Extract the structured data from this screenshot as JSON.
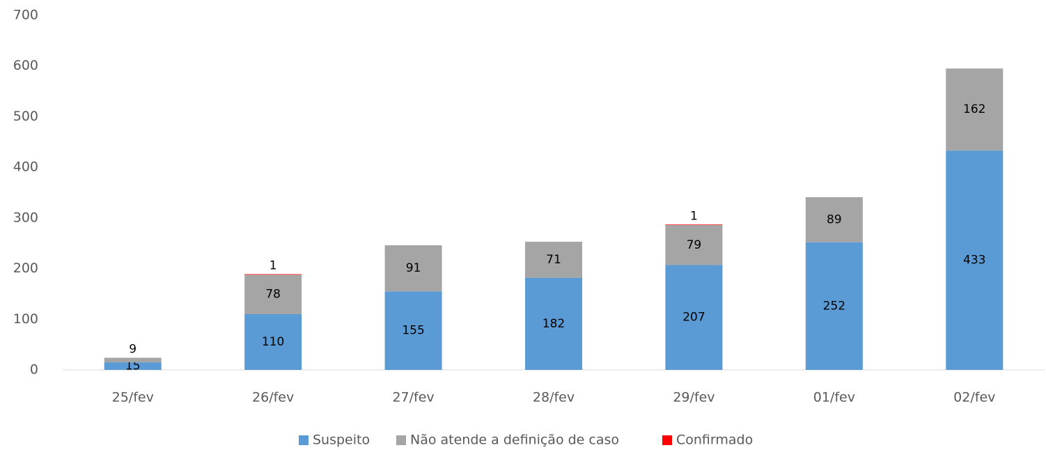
{
  "chart_data": {
    "type": "stacked_bar",
    "categories": [
      "25/fev",
      "26/fev",
      "27/fev",
      "28/fev",
      "29/fev",
      "01/fev",
      "02/fev"
    ],
    "series": [
      {
        "name": "Suspeito",
        "color": "#5b9bd5",
        "values": [
          15,
          110,
          155,
          182,
          207,
          252,
          433
        ]
      },
      {
        "name": "Não atende a definição de caso",
        "color": "#a5a5a5",
        "values": [
          9,
          78,
          91,
          71,
          79,
          89,
          162
        ]
      },
      {
        "name": "Confirmado",
        "color": "#ff0000",
        "values": [
          null,
          1,
          null,
          null,
          1,
          null,
          null
        ]
      }
    ],
    "ylim": [
      0,
      700
    ],
    "yticks": [
      0,
      100,
      200,
      300,
      400,
      500,
      600,
      700
    ],
    "legend": "bottom"
  }
}
